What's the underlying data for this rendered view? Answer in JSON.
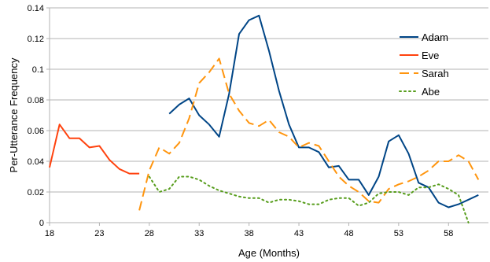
{
  "chart_data": {
    "type": "line",
    "title": "",
    "xlabel": "Age (Months)",
    "ylabel": "Per-Utterance Frequency",
    "xlim": [
      18,
      62
    ],
    "ylim": [
      0,
      0.14
    ],
    "x_ticks": [
      18,
      23,
      28,
      33,
      38,
      43,
      48,
      53,
      58
    ],
    "x_tick_labels": [
      "18",
      "23",
      "28",
      "33",
      "38",
      "43",
      "48",
      "53",
      "58"
    ],
    "y_ticks": [
      0,
      0.02,
      0.04,
      0.06,
      0.08,
      0.1,
      0.12,
      0.14
    ],
    "y_tick_labels": [
      "0",
      "0.02",
      "0.04",
      "0.06",
      "0.08",
      "0.1",
      "0.12",
      "0.14"
    ],
    "grid": "horizontal",
    "legend_position": "top-right",
    "series": [
      {
        "name": "Adam",
        "color": "#004586",
        "dash": "solid",
        "points": [
          [
            30,
            0.071
          ],
          [
            31,
            0.077
          ],
          [
            32,
            0.081
          ],
          [
            33,
            0.07
          ],
          [
            34,
            0.064
          ],
          [
            35,
            0.056
          ],
          [
            36,
            0.084
          ],
          [
            37,
            0.123
          ],
          [
            38,
            0.132
          ],
          [
            39,
            0.135
          ],
          [
            40,
            0.112
          ],
          [
            41,
            0.086
          ],
          [
            42,
            0.064
          ],
          [
            43,
            0.049
          ],
          [
            44,
            0.049
          ],
          [
            45,
            0.046
          ],
          [
            46,
            0.036
          ],
          [
            47,
            0.037
          ],
          [
            48,
            0.028
          ],
          [
            49,
            0.028
          ],
          [
            50,
            0.018
          ],
          [
            51,
            0.03
          ],
          [
            52,
            0.053
          ],
          [
            53,
            0.057
          ],
          [
            54,
            0.045
          ],
          [
            55,
            0.026
          ],
          [
            56,
            0.023
          ],
          [
            57,
            0.013
          ],
          [
            58,
            0.01
          ],
          [
            59,
            0.012
          ],
          [
            60,
            0.015
          ],
          [
            61,
            0.018
          ]
        ]
      },
      {
        "name": "Eve",
        "color": "#ff420e",
        "dash": "solid",
        "points": [
          [
            18,
            0.036
          ],
          [
            19,
            0.064
          ],
          [
            20,
            0.055
          ],
          [
            21,
            0.055
          ],
          [
            22,
            0.049
          ],
          [
            23,
            0.05
          ],
          [
            24,
            0.041
          ],
          [
            25,
            0.035
          ],
          [
            26,
            0.032
          ],
          [
            27,
            0.032
          ]
        ]
      },
      {
        "name": "Sarah",
        "color": "#ff950e",
        "dash": "dashed",
        "points": [
          [
            27,
            0.008
          ],
          [
            28,
            0.034
          ],
          [
            29,
            0.049
          ],
          [
            30,
            0.045
          ],
          [
            31,
            0.052
          ],
          [
            32,
            0.068
          ],
          [
            33,
            0.091
          ],
          [
            34,
            0.098
          ],
          [
            35,
            0.107
          ],
          [
            36,
            0.084
          ],
          [
            37,
            0.073
          ],
          [
            38,
            0.065
          ],
          [
            39,
            0.063
          ],
          [
            40,
            0.067
          ],
          [
            41,
            0.059
          ],
          [
            42,
            0.056
          ],
          [
            43,
            0.049
          ],
          [
            44,
            0.052
          ],
          [
            45,
            0.05
          ],
          [
            46,
            0.04
          ],
          [
            47,
            0.03
          ],
          [
            48,
            0.024
          ],
          [
            49,
            0.02
          ],
          [
            50,
            0.014
          ],
          [
            51,
            0.013
          ],
          [
            52,
            0.022
          ],
          [
            53,
            0.025
          ],
          [
            54,
            0.027
          ],
          [
            55,
            0.03
          ],
          [
            56,
            0.034
          ],
          [
            57,
            0.04
          ],
          [
            58,
            0.04
          ],
          [
            59,
            0.044
          ],
          [
            60,
            0.04
          ],
          [
            61,
            0.028
          ]
        ]
      },
      {
        "name": "Abe",
        "color": "#579d1c",
        "dash": "dotted",
        "points": [
          [
            28,
            0.03
          ],
          [
            29,
            0.02
          ],
          [
            30,
            0.022
          ],
          [
            31,
            0.03
          ],
          [
            32,
            0.03
          ],
          [
            33,
            0.028
          ],
          [
            34,
            0.024
          ],
          [
            35,
            0.021
          ],
          [
            36,
            0.019
          ],
          [
            37,
            0.017
          ],
          [
            38,
            0.016
          ],
          [
            39,
            0.016
          ],
          [
            40,
            0.013
          ],
          [
            41,
            0.015
          ],
          [
            42,
            0.015
          ],
          [
            43,
            0.014
          ],
          [
            44,
            0.012
          ],
          [
            45,
            0.012
          ],
          [
            46,
            0.015
          ],
          [
            47,
            0.016
          ],
          [
            48,
            0.016
          ],
          [
            49,
            0.011
          ],
          [
            50,
            0.013
          ],
          [
            51,
            0.019
          ],
          [
            52,
            0.02
          ],
          [
            53,
            0.02
          ],
          [
            54,
            0.018
          ],
          [
            55,
            0.023
          ],
          [
            56,
            0.023
          ],
          [
            57,
            0.025
          ],
          [
            58,
            0.022
          ],
          [
            59,
            0.018
          ],
          [
            60,
            0.0
          ]
        ]
      }
    ]
  }
}
